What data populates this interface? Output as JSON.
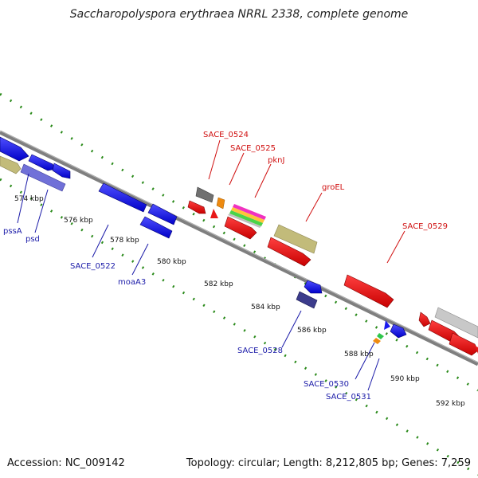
{
  "title": "Saccharopolyspora erythraea NRRL 2338, complete genome",
  "footer": {
    "accession": "Accession: NC_009142",
    "summary": "Topology: circular; Length: 8,212,805 bp; Genes: 7,259"
  },
  "colors": {
    "forward_label": "#d01010",
    "reverse_label": "#1a1aa8",
    "dots": "#2a8a1a",
    "backbone": "#8c8c8c"
  },
  "ticks": [
    "574 kbp",
    "576 kbp",
    "578 kbp",
    "580 kbp",
    "582 kbp",
    "584 kbp",
    "586 kbp",
    "588 kbp",
    "590 kbp",
    "592 kbp"
  ],
  "forward_labels": [
    "SACE_0524",
    "SACE_0525",
    "pknJ",
    "groEL",
    "SACE_0529"
  ],
  "reverse_labels": [
    "pssA",
    "psd",
    "SACE_0522",
    "moaA3",
    "SACE_0528",
    "SACE_0530",
    "SACE_0531"
  ]
}
